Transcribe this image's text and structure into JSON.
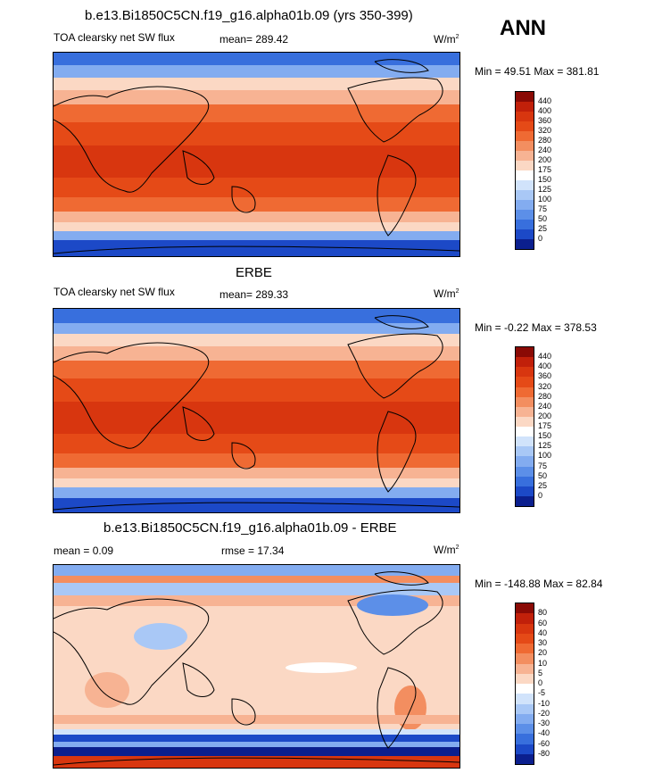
{
  "season": "ANN",
  "panels": [
    {
      "title": "b.e13.Bi1850C5CN.f19_g16.alpha01b.09 (yrs 350-399)",
      "left_label": "TOA clearsky net SW flux",
      "mid_label": "mean= 289.42",
      "units": "W/m",
      "units_exp": "2",
      "minmax": "Min =  49.51 Max = 381.81",
      "colorbar": {
        "levels": [
          "440",
          "400",
          "360",
          "320",
          "280",
          "240",
          "200",
          "175",
          "150",
          "125",
          "100",
          "75",
          "50",
          "25",
          "0"
        ],
        "colors": [
          "#8a0a05",
          "#c1200a",
          "#d8360f",
          "#e54a17",
          "#ef6a33",
          "#f38e60",
          "#f7b393",
          "#fbd8c4",
          "#ffffff",
          "#d1e3fb",
          "#a9c8f6",
          "#83acf0",
          "#5c8fe8",
          "#386fdd",
          "#1c49c7",
          "#0b1f8e"
        ]
      }
    },
    {
      "title": "ERBE",
      "left_label": "TOA clearsky net SW flux",
      "mid_label": "mean= 289.33",
      "units": "W/m",
      "units_exp": "2",
      "minmax": "Min =  -0.22 Max = 378.53",
      "colorbar": {
        "levels": [
          "440",
          "400",
          "360",
          "320",
          "280",
          "240",
          "200",
          "175",
          "150",
          "125",
          "100",
          "75",
          "50",
          "25",
          "0"
        ],
        "colors": [
          "#8a0a05",
          "#c1200a",
          "#d8360f",
          "#e54a17",
          "#ef6a33",
          "#f38e60",
          "#f7b393",
          "#fbd8c4",
          "#ffffff",
          "#d1e3fb",
          "#a9c8f6",
          "#83acf0",
          "#5c8fe8",
          "#386fdd",
          "#1c49c7",
          "#0b1f8e"
        ]
      }
    },
    {
      "title": "b.e13.Bi1850C5CN.f19_g16.alpha01b.09 - ERBE",
      "left_label": "mean =   0.09",
      "mid_label": "rmse =  17.34",
      "units": "W/m",
      "units_exp": "2",
      "minmax": "Min = -148.88 Max =  82.84",
      "colorbar": {
        "levels": [
          "80",
          "60",
          "40",
          "30",
          "20",
          "10",
          "5",
          "0",
          "-5",
          "-10",
          "-20",
          "-30",
          "-40",
          "-60",
          "-80"
        ],
        "colors": [
          "#8a0a05",
          "#c1200a",
          "#d8360f",
          "#e54a17",
          "#ef6a33",
          "#f38e60",
          "#f7b393",
          "#fbd8c4",
          "#ffffff",
          "#d1e3fb",
          "#a9c8f6",
          "#83acf0",
          "#5c8fe8",
          "#386fdd",
          "#1c49c7",
          "#0b1f8e"
        ]
      }
    }
  ]
}
